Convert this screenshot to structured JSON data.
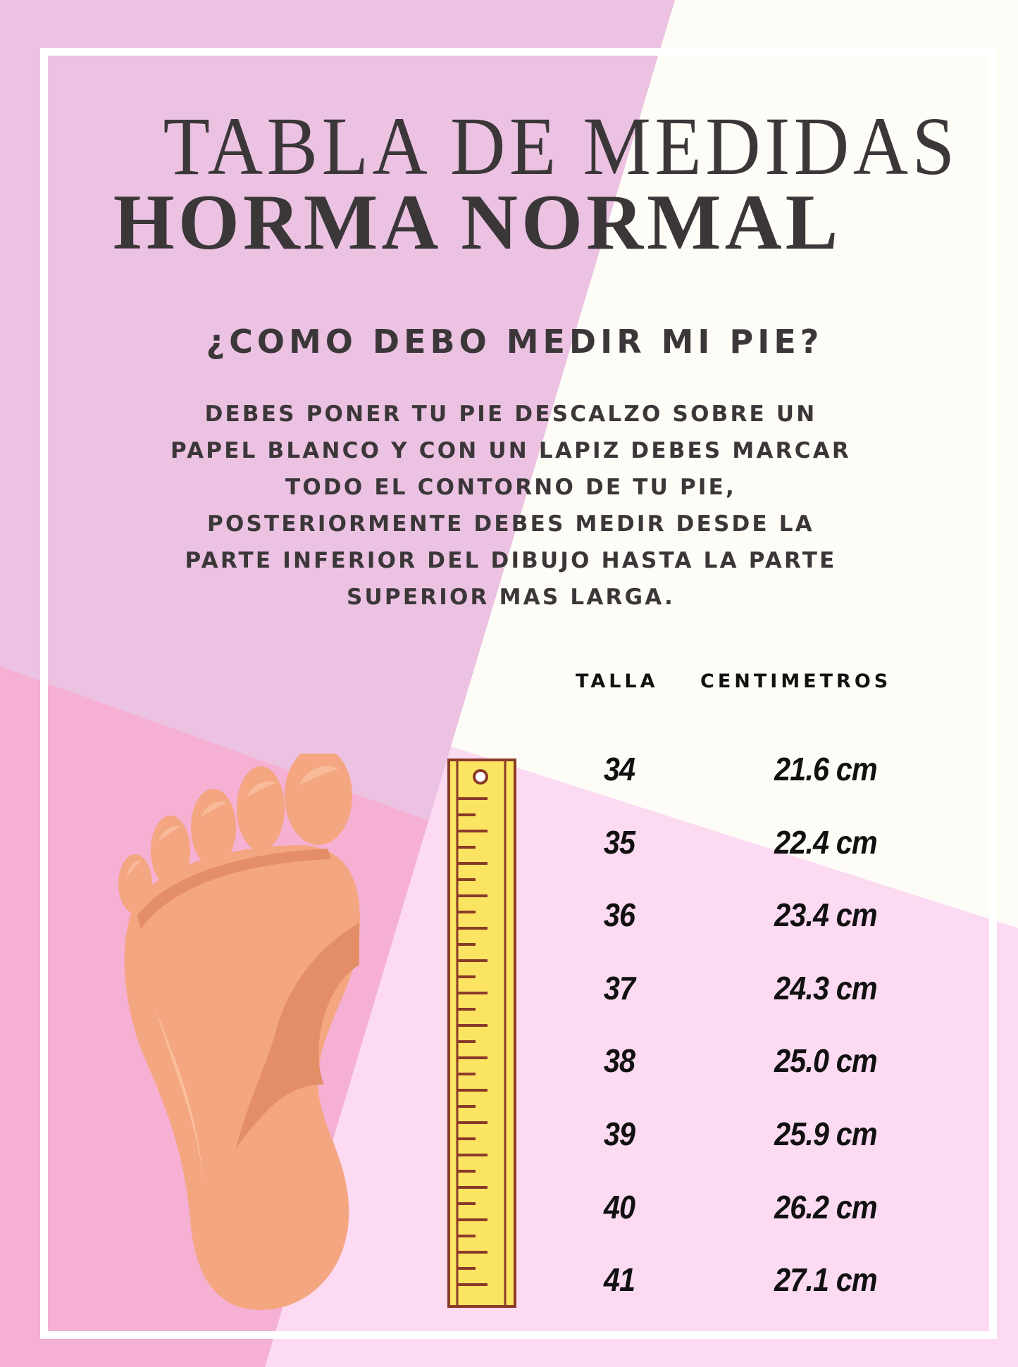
{
  "colors": {
    "lavender": "#ECC2E2",
    "cream": "#FDFCF6",
    "light_pink": "#FCDAF2",
    "hot_pink": "#F5B0D3",
    "text_dark": "#3b3739",
    "ruler_yellow": "#FBE461",
    "ruler_brown": "#8B3A2A",
    "foot_skin": "#F4A680"
  },
  "header": {
    "title": "TABLA DE MEDIDAS",
    "subtitle": "HORMA NORMAL"
  },
  "instructions": {
    "question": "¿COMO DEBO MEDIR MI PIE?",
    "lines": [
      "DEBES PONER TU PIE DESCALZO SOBRE UN",
      "PAPEL BLANCO Y CON UN LAPIZ DEBES MARCAR",
      "TODO EL CONTORNO DE TU PIE,",
      "POSTERIORMENTE DEBES MEDIR DESDE LA",
      "PARTE INFERIOR DEL DIBUJO HASTA LA PARTE",
      "SUPERIOR MAS LARGA."
    ]
  },
  "size_table": {
    "columns": [
      "TALLA",
      "CENTIMETROS"
    ],
    "rows": [
      {
        "talla": "34",
        "cm": "21.6 cm"
      },
      {
        "talla": "35",
        "cm": "22.4 cm"
      },
      {
        "talla": "36",
        "cm": "23.4 cm"
      },
      {
        "talla": "37",
        "cm": "24.3 cm"
      },
      {
        "talla": "38",
        "cm": "25.0 cm"
      },
      {
        "talla": "39",
        "cm": "25.9 cm"
      },
      {
        "talla": "40",
        "cm": "26.2 cm"
      },
      {
        "talla": "41",
        "cm": "27.1 cm"
      }
    ]
  },
  "illustrations": {
    "foot": "foot-sole-icon",
    "ruler": "ruler-icon"
  }
}
